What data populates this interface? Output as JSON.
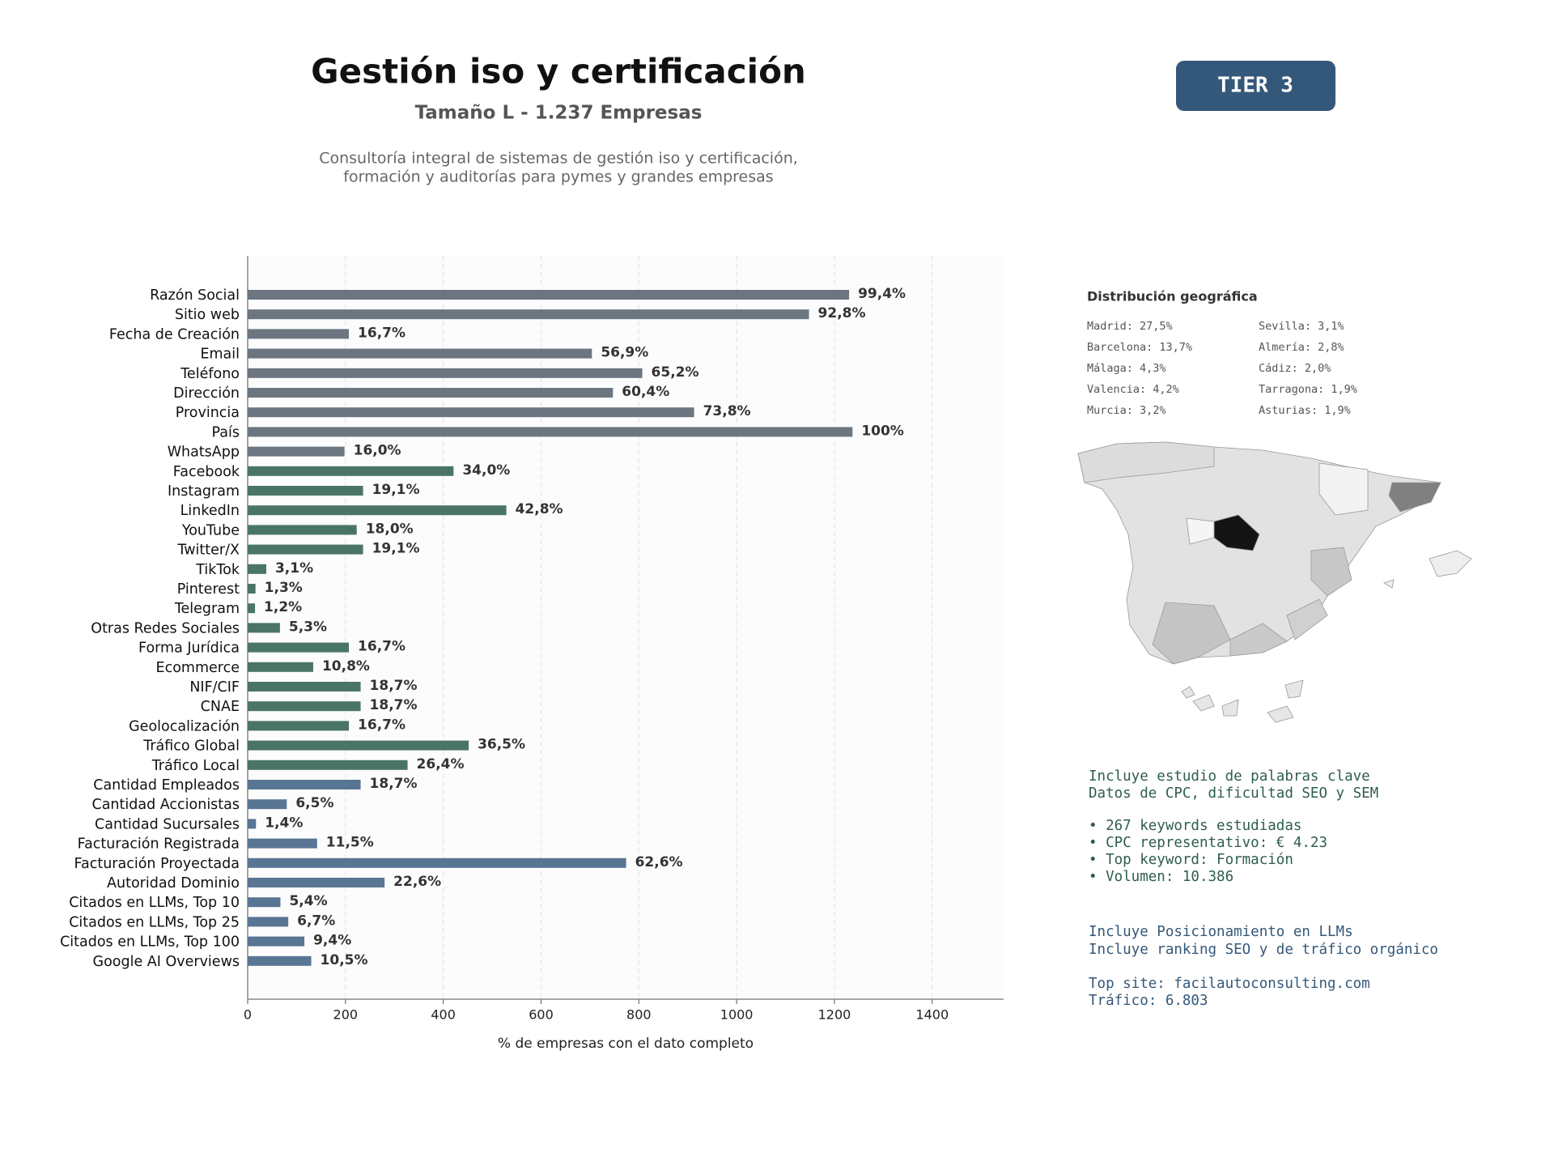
{
  "chart_data": {
    "type": "bar",
    "orientation": "horizontal",
    "title": "Gestión iso y certificación",
    "subtitle": "Tamaño L - 1.237 Empresas",
    "description": [
      "Consultoría integral de sistemas de gestión iso y certificación,",
      "formación y auditorías para pymes y grandes empresas"
    ],
    "categories": [
      "Razón Social",
      "Sitio web",
      "Fecha de Creación",
      "Email",
      "Teléfono",
      "Dirección",
      "Provincia",
      "País",
      "WhatsApp",
      "Facebook",
      "Instagram",
      "LinkedIn",
      "YouTube",
      "Twitter/X",
      "TikTok",
      "Pinterest",
      "Telegram",
      "Otras Redes Sociales",
      "Forma Jurídica",
      "Ecommerce",
      "NIF/CIF",
      "CNAE",
      "Geolocalización",
      "Tráfico Global",
      "Tráfico Local",
      "Cantidad Empleados",
      "Cantidad Accionistas",
      "Cantidad Sucursales",
      "Facturación Registrada",
      "Facturación Proyectada",
      "Autoridad Dominio",
      "Citados en LLMs, Top 10",
      "Citados en LLMs, Top 25",
      "Citados en LLMs, Top 100",
      "Google AI Overviews"
    ],
    "values": [
      1230,
      1148,
      207,
      704,
      807,
      747,
      913,
      1237,
      198,
      421,
      236,
      529,
      223,
      236,
      38,
      16,
      15,
      66,
      207,
      134,
      231,
      231,
      207,
      452,
      327,
      231,
      80,
      17,
      142,
      774,
      280,
      67,
      83,
      116,
      130
    ],
    "value_labels": [
      "99,4%",
      "92,8%",
      "16,7%",
      "56,9%",
      "65,2%",
      "60,4%",
      "73,8%",
      "100%",
      "16,0%",
      "34,0%",
      "19,1%",
      "42,8%",
      "18,0%",
      "19,1%",
      "3,1%",
      "1,3%",
      "1,2%",
      "5,3%",
      "16,7%",
      "10,8%",
      "18,7%",
      "18,7%",
      "16,7%",
      "36,5%",
      "26,4%",
      "18,7%",
      "6,5%",
      "1,4%",
      "11,5%",
      "62,6%",
      "22,6%",
      "5,4%",
      "6,7%",
      "9,4%",
      "10,5%"
    ],
    "colors": [
      "#6c7680",
      "#6c7680",
      "#6c7680",
      "#6c7680",
      "#6c7680",
      "#6c7680",
      "#6c7680",
      "#6c7680",
      "#6c7680",
      "#4a7566",
      "#4a7566",
      "#4a7566",
      "#4a7566",
      "#4a7566",
      "#4a7566",
      "#4a7566",
      "#4a7566",
      "#4a7566",
      "#4a7566",
      "#4a7566",
      "#4a7566",
      "#4a7566",
      "#4a7566",
      "#4a7566",
      "#4a7566",
      "#587593",
      "#587593",
      "#587593",
      "#587593",
      "#587593",
      "#587593",
      "#587593",
      "#587593",
      "#587593",
      "#587593"
    ],
    "xlim": [
      0,
      1546
    ],
    "xticks": [
      0,
      200,
      400,
      600,
      800,
      1000,
      1200,
      1400
    ],
    "xlabel": "% de empresas con el dato completo",
    "grid": true
  },
  "badge": "TIER 3",
  "geo": {
    "title": "Distribución geográfica",
    "items": [
      "Madrid: 27,5%",
      "Barcelona: 13,7%",
      "Málaga: 4,3%",
      "Valencia: 4,2%",
      "Murcia: 3,2%",
      "Sevilla: 3,1%",
      "Almería: 2,8%",
      "Cádiz: 2,0%",
      "Tarragona: 1,9%",
      "Asturias: 1,9%"
    ]
  },
  "keywords": [
    "Incluye estudio de palabras clave",
    "Datos de CPC, dificultad SEO y SEM",
    "• 267 keywords estudiadas",
    "• CPC representativo: € 4.23",
    "• Top keyword: Formación",
    "• Volumen: 10.386"
  ],
  "llm": [
    "Incluye Posicionamiento en LLMs",
    "Incluye ranking SEO y de tráfico orgánico",
    "Top site: facilautoconsulting.com",
    "Tráfico: 6.803"
  ]
}
